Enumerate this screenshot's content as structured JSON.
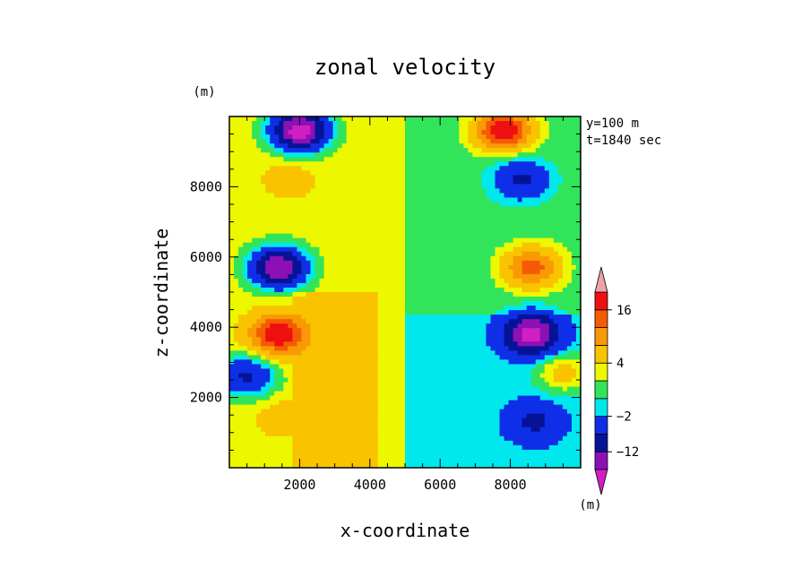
{
  "chart_data": {
    "type": "heatmap",
    "title": "zonal velocity",
    "xlabel": "x-coordinate",
    "ylabel": "z-coordinate",
    "x_unit": "(m)",
    "y_unit": "(m)",
    "annotations": [
      "y=100 m",
      "t=1840 sec"
    ],
    "xlim": [
      0,
      10000
    ],
    "ylim": [
      0,
      10000
    ],
    "x_ticks": [
      2000,
      4000,
      6000,
      8000
    ],
    "y_ticks": [
      2000,
      4000,
      6000,
      8000
    ],
    "grid": false,
    "colorbar": {
      "levels": [
        -22,
        -17,
        -12,
        -7,
        -2,
        0,
        2,
        4,
        8,
        12,
        16,
        20
      ],
      "labels": [
        "16",
        "4",
        "−2",
        "−12"
      ],
      "label_values": [
        16,
        4,
        -2,
        -12
      ],
      "colors": [
        "#d11fc2",
        "#8c11b5",
        "#071396",
        "#0f2ee7",
        "#00e8ee",
        "#32e45a",
        "#edf700",
        "#f9c300",
        "#f99a05",
        "#f65a04",
        "#ee1010",
        "#f0a1a6"
      ],
      "extend": "both"
    },
    "features": [
      {
        "x": 2000,
        "y": 9600,
        "value": -20
      },
      {
        "x": 7800,
        "y": 9600,
        "value": 20
      },
      {
        "x": 1400,
        "y": 5700,
        "value": -17
      },
      {
        "x": 8600,
        "y": 5700,
        "value": 14
      },
      {
        "x": 1400,
        "y": 3800,
        "value": 20
      },
      {
        "x": 8600,
        "y": 3800,
        "value": -20
      },
      {
        "x": 8300,
        "y": 8200,
        "value": -9
      },
      {
        "x": 1700,
        "y": 8200,
        "value": 6
      },
      {
        "x": 500,
        "y": 2600,
        "value": -9
      },
      {
        "x": 9500,
        "y": 2700,
        "value": 6
      },
      {
        "x": 8700,
        "y": 1300,
        "value": -9
      },
      {
        "x": 1500,
        "y": 1400,
        "value": 6
      },
      {
        "x": 2900,
        "y": 2800,
        "value": 7
      }
    ]
  }
}
